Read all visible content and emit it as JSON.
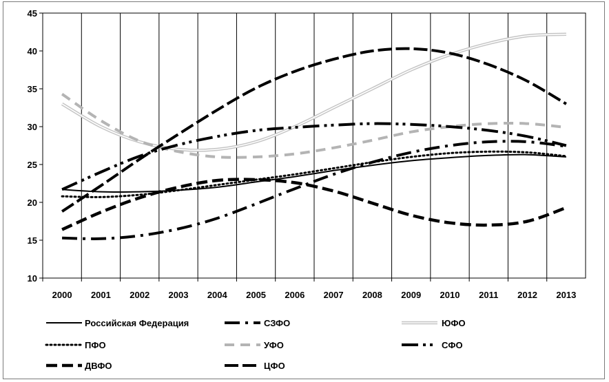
{
  "chart_data": {
    "type": "line",
    "title": "",
    "xlabel": "",
    "ylabel": "",
    "x": [
      2000,
      2001,
      2002,
      2003,
      2004,
      2005,
      2006,
      2007,
      2008,
      2009,
      2010,
      2011,
      2012,
      2013
    ],
    "x_tick_labels": [
      "2000",
      "2001",
      "2002",
      "2003",
      "2004",
      "2005",
      "2006",
      "2007",
      "2008",
      "2009",
      "2010",
      "2011",
      "2012",
      "2013"
    ],
    "ylim": [
      10,
      45
    ],
    "y_ticks": [
      10,
      15,
      20,
      25,
      30,
      35,
      40,
      45
    ],
    "grid": "vertical",
    "legend_position": "bottom",
    "series": [
      {
        "name": "Российская Федерация",
        "color": "#000000",
        "style": "solid",
        "values": [
          21.7,
          21.4,
          21.4,
          21.6,
          22.0,
          22.7,
          23.4,
          24.2,
          24.9,
          25.5,
          25.9,
          26.2,
          26.3,
          26.0
        ]
      },
      {
        "name": "СЗФО",
        "color": "#000000",
        "style": "dashdot",
        "values": [
          15.3,
          15.2,
          15.6,
          16.5,
          17.9,
          19.8,
          21.8,
          23.7,
          25.3,
          26.6,
          27.5,
          28.0,
          28.0,
          27.4
        ]
      },
      {
        "name": "ЮФО",
        "color": "#c4c4c4",
        "style": "double",
        "values": [
          33.0,
          30.0,
          28.0,
          27.0,
          27.0,
          28.0,
          30.0,
          32.5,
          35.0,
          37.5,
          39.5,
          41.0,
          42.0,
          42.2
        ]
      },
      {
        "name": "ПФО",
        "color": "#000000",
        "style": "dotted",
        "values": [
          20.8,
          20.7,
          21.0,
          21.6,
          22.3,
          23.0,
          23.7,
          24.5,
          25.3,
          26.0,
          26.5,
          26.7,
          26.6,
          26.1
        ]
      },
      {
        "name": "УФО",
        "color": "#b4b4b4",
        "style": "dashed-light",
        "values": [
          34.3,
          30.8,
          28.1,
          26.7,
          26.0,
          26.0,
          26.4,
          27.2,
          28.2,
          29.3,
          30.0,
          30.4,
          30.4,
          29.9
        ]
      },
      {
        "name": "СФО",
        "color": "#000000",
        "style": "dash-dot-dot",
        "values": [
          21.7,
          24.0,
          26.1,
          27.6,
          28.7,
          29.5,
          29.9,
          30.2,
          30.4,
          30.3,
          30.0,
          29.5,
          28.7,
          27.5
        ]
      },
      {
        "name": "ДВФО",
        "color": "#000000",
        "style": "dashed",
        "values": [
          16.4,
          18.7,
          20.6,
          22.0,
          22.9,
          23.0,
          22.6,
          21.5,
          19.9,
          18.3,
          17.3,
          17.0,
          17.5,
          19.3
        ]
      },
      {
        "name": "ЦФО",
        "color": "#000000",
        "style": "dashed-heavy",
        "values": [
          18.8,
          22.2,
          25.7,
          29.0,
          32.2,
          35.1,
          37.3,
          38.9,
          40.0,
          40.3,
          39.7,
          38.2,
          36.0,
          33.0
        ]
      }
    ]
  }
}
